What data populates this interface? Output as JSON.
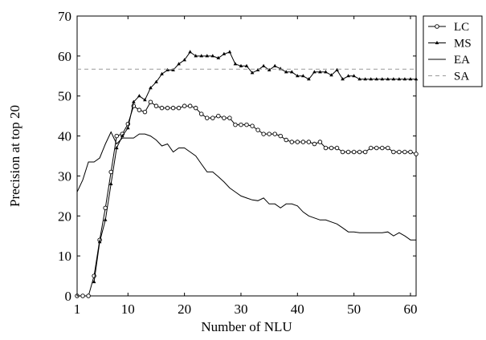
{
  "chart_data": {
    "type": "line",
    "xlabel": "Number of NLU",
    "ylabel": "Precision at top 20",
    "xlim": [
      1,
      61
    ],
    "ylim": [
      0,
      70
    ],
    "xticks": [
      1,
      10,
      20,
      30,
      40,
      50,
      60
    ],
    "yticks": [
      0,
      10,
      20,
      30,
      40,
      50,
      60,
      70
    ],
    "legend_position": "outside-top-right",
    "grid": false,
    "x": [
      1,
      2,
      3,
      4,
      5,
      6,
      7,
      8,
      9,
      10,
      11,
      12,
      13,
      14,
      15,
      16,
      17,
      18,
      19,
      20,
      21,
      22,
      23,
      24,
      25,
      26,
      27,
      28,
      29,
      30,
      31,
      32,
      33,
      34,
      35,
      36,
      37,
      38,
      39,
      40,
      41,
      42,
      43,
      44,
      45,
      46,
      47,
      48,
      49,
      50,
      51,
      52,
      53,
      54,
      55,
      56,
      57,
      58,
      59,
      60,
      61
    ],
    "series": [
      {
        "name": "LC",
        "style": "circle-markers",
        "color": "#000000",
        "values": [
          0,
          0,
          0,
          5,
          14,
          22,
          31,
          40,
          40.5,
          43,
          47.5,
          46.5,
          46,
          48.5,
          47.5,
          47,
          47,
          47,
          47,
          47.5,
          47.5,
          47,
          45.5,
          44.5,
          44.5,
          45,
          44.5,
          44.5,
          42.8,
          42.8,
          42.8,
          42.5,
          41.5,
          40.5,
          40.5,
          40.5,
          40,
          39,
          38.5,
          38.5,
          38.5,
          38.5,
          38,
          38.5,
          37,
          37,
          37,
          36,
          36,
          36,
          36,
          36,
          37,
          37,
          37,
          37,
          36,
          36,
          36,
          36,
          35.5
        ]
      },
      {
        "name": "MS",
        "style": "triangle-markers",
        "color": "#000000",
        "values": [
          null,
          null,
          null,
          3.5,
          13.5,
          19,
          28,
          37,
          40,
          42,
          48.5,
          50,
          49,
          52,
          53.5,
          55.5,
          56.5,
          56.5,
          58,
          59,
          61,
          60,
          60,
          60,
          60,
          59.5,
          60.5,
          61,
          58,
          57.5,
          57.5,
          55.8,
          56.5,
          57.5,
          56.5,
          57.5,
          56.8,
          56,
          56,
          55,
          55,
          54.2,
          56,
          56,
          56,
          55.2,
          56.5,
          54.2,
          55,
          55,
          54.2,
          54.2,
          54.2,
          54.2,
          54.2,
          54.2,
          54.2,
          54.2,
          54.2,
          54.2,
          54.2
        ]
      },
      {
        "name": "EA",
        "style": "solid",
        "color": "#000000",
        "values": [
          26,
          29,
          33.5,
          33.5,
          34.5,
          38,
          41,
          38,
          39.5,
          39.5,
          39.5,
          40.5,
          40.5,
          40,
          39,
          37.5,
          38,
          36,
          37,
          37,
          36,
          35,
          33,
          31,
          31,
          29.8,
          28.5,
          27,
          26,
          25,
          24.5,
          24,
          23.8,
          24.5,
          23,
          23,
          22,
          23,
          23,
          22.5,
          21,
          20,
          19.5,
          19,
          19,
          18.5,
          18,
          17,
          16,
          16,
          15.8,
          15.8,
          15.8,
          15.8,
          15.8,
          16,
          15,
          15.8,
          15,
          14,
          14
        ]
      },
      {
        "name": "SA",
        "style": "dashed",
        "color": "#999999",
        "constant": 56.7
      }
    ]
  }
}
